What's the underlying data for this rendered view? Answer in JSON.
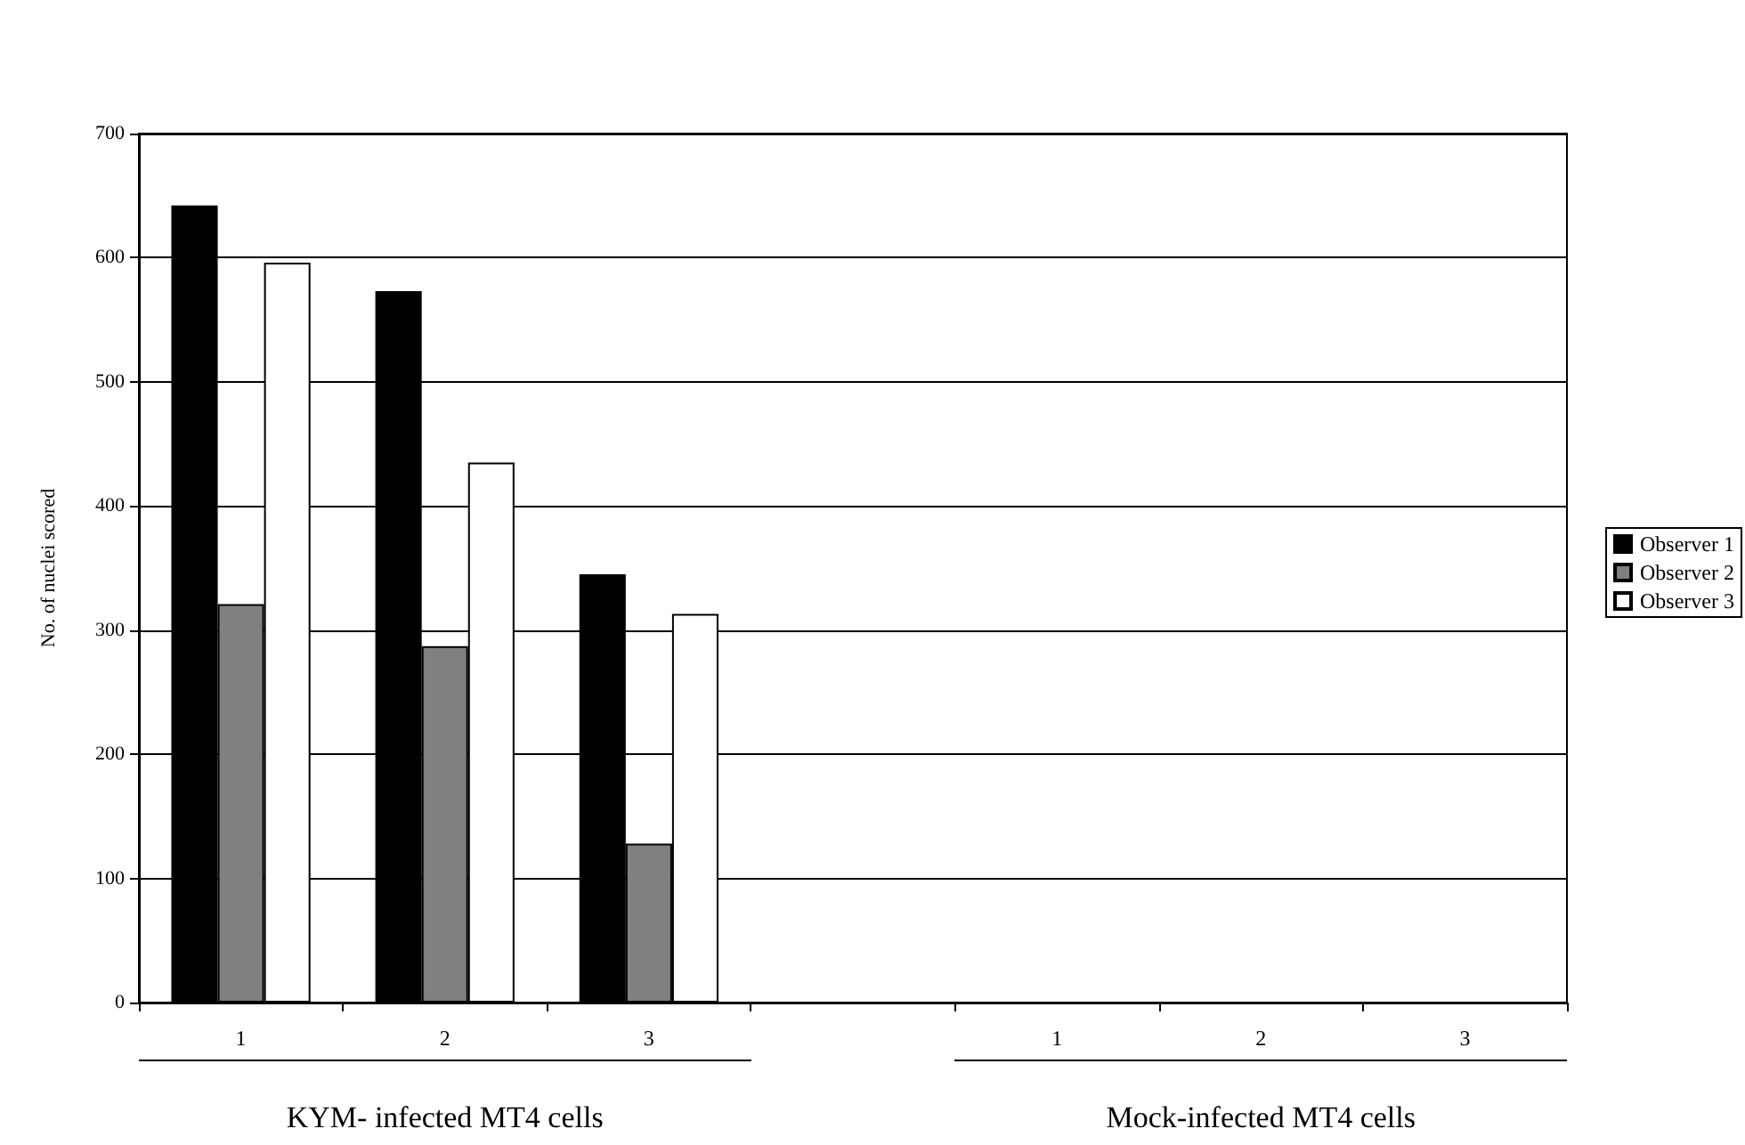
{
  "chart_data": {
    "type": "bar",
    "ylabel": "No. of nuclei scored",
    "categories": [
      "1",
      "2",
      "3",
      null,
      "1",
      "2",
      "3"
    ],
    "series": [
      {
        "name": "Observer 1",
        "color": "#000000",
        "values": [
          642,
          573,
          345,
          null,
          0,
          0,
          0
        ]
      },
      {
        "name": "Observer 2",
        "color": "#808080",
        "values": [
          321,
          287,
          128,
          null,
          0,
          0,
          0
        ]
      },
      {
        "name": "Observer 3",
        "color": "#ffffff",
        "values": [
          596,
          435,
          313,
          null,
          0,
          0,
          0
        ]
      }
    ],
    "ylim": [
      0,
      700
    ],
    "yticks": [
      0,
      100,
      200,
      300,
      400,
      500,
      600,
      700
    ],
    "grid": "y",
    "legend": "right",
    "annotations": [
      "KYM- infected MT4 cells",
      "Mock-infected MT4 cells"
    ]
  }
}
